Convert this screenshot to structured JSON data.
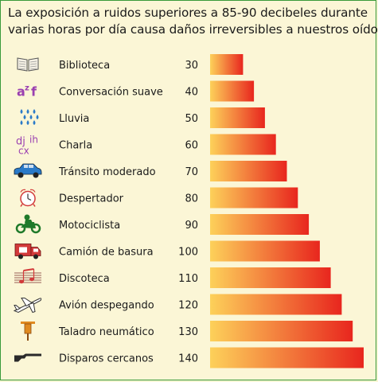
{
  "header": {
    "line1": "La exposición a ruidos superiores a 85-90 decibeles durante",
    "line2": "varias horas por día causa daños irreversibles a nuestros oídos."
  },
  "colors": {
    "bar_start": "#fdd15a",
    "bar_end": "#e8261e",
    "icon": "#d23a3a",
    "icon_blue": "#2a7ac8",
    "icon_green": "#1f7a2a",
    "icon_purple": "#9a3fb0"
  },
  "chart_data": {
    "type": "bar",
    "orientation": "horizontal",
    "categories": [
      "Biblioteca",
      "Conversación suave",
      "Lluvia",
      "Charla",
      "Tránsito moderado",
      "Despertador",
      "Motociclista",
      "Camión de basura",
      "Discoteca",
      "Avión despegando",
      "Taladro neumático",
      "Disparos cercanos"
    ],
    "values": [
      30,
      40,
      50,
      60,
      70,
      80,
      90,
      100,
      110,
      120,
      130,
      140
    ],
    "icons": [
      "book-icon",
      "az-letters-icon",
      "rain-icon",
      "letters-chat-icon",
      "car-icon",
      "alarm-clock-icon",
      "motorcycle-icon",
      "garbage-truck-icon",
      "music-notes-icon",
      "airplane-icon",
      "jackhammer-icon",
      "rifle-icon"
    ]
  }
}
